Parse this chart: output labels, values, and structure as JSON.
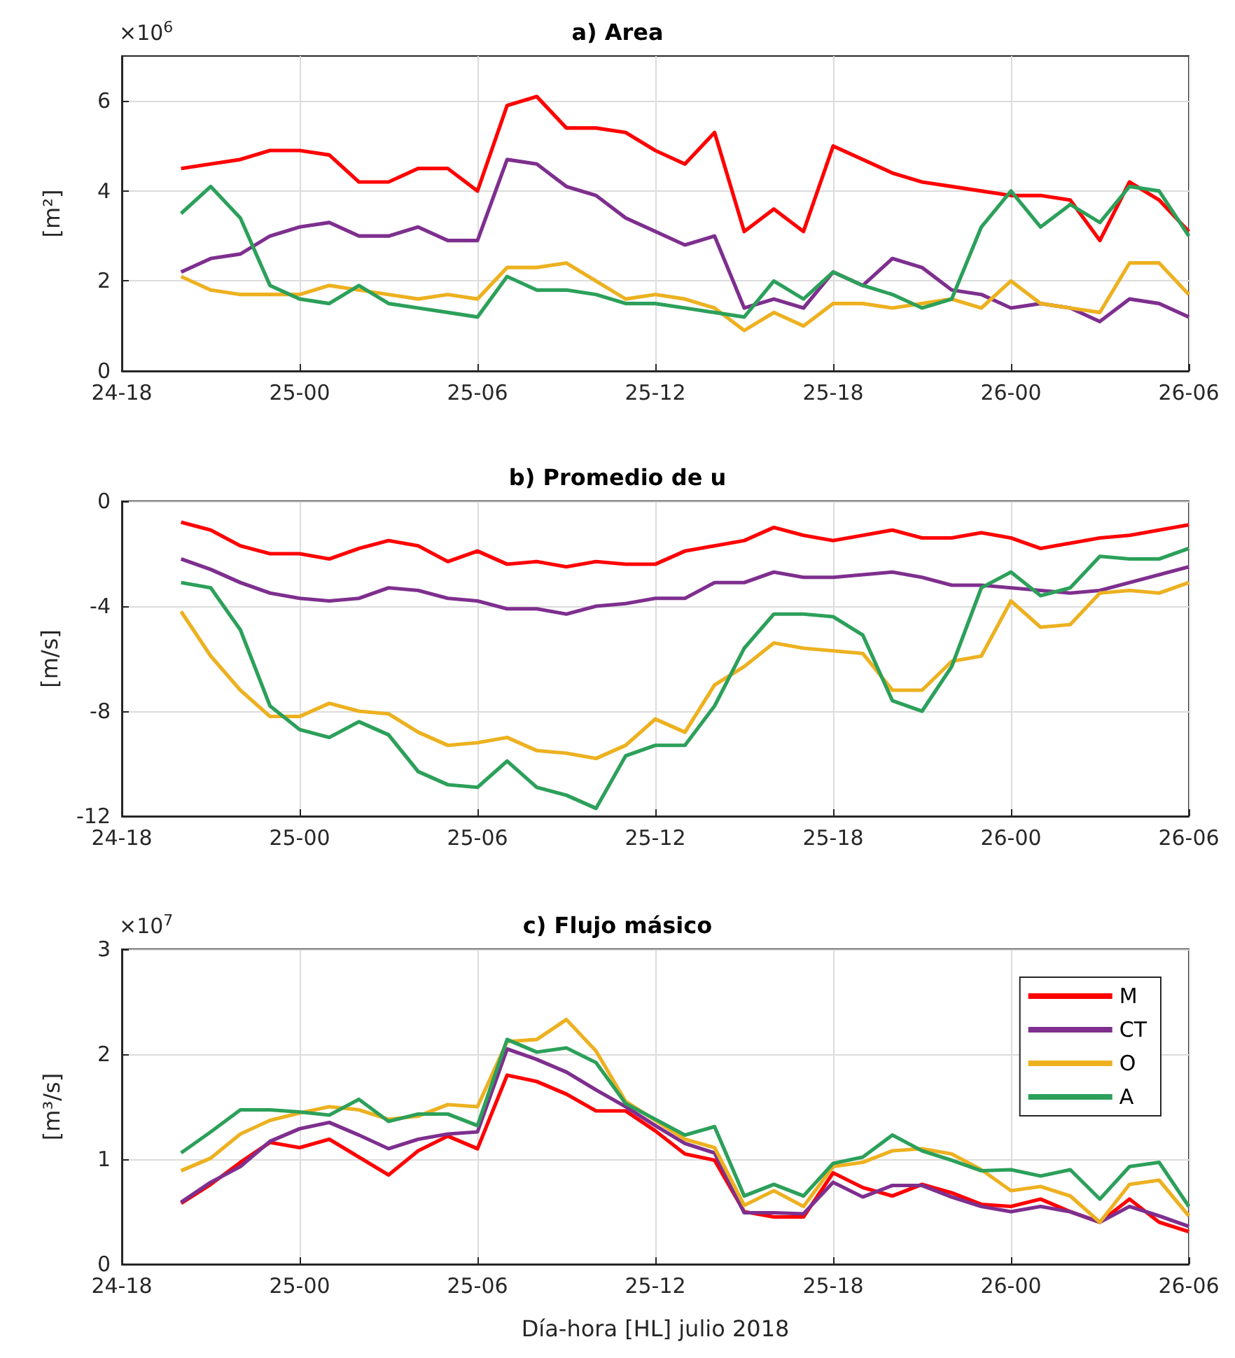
{
  "chart_data": [
    {
      "type": "line",
      "title": "a) Area",
      "ylabel": "[m²]",
      "annotations": [
        "×10$^{6}$"
      ],
      "x": [
        "2018-07-24T20:00",
        "2018-07-24T21:00",
        "2018-07-24T22:00",
        "2018-07-24T23:00",
        "2018-07-25T00:00",
        "2018-07-25T01:00",
        "2018-07-25T02:00",
        "2018-07-25T03:00",
        "2018-07-25T04:00",
        "2018-07-25T05:00",
        "2018-07-25T06:00",
        "2018-07-25T07:00",
        "2018-07-25T08:00",
        "2018-07-25T09:00",
        "2018-07-25T10:00",
        "2018-07-25T11:00",
        "2018-07-25T12:00",
        "2018-07-25T13:00",
        "2018-07-25T14:00",
        "2018-07-25T15:00",
        "2018-07-25T16:00",
        "2018-07-25T17:00",
        "2018-07-25T18:00",
        "2018-07-25T19:00",
        "2018-07-25T20:00",
        "2018-07-25T21:00",
        "2018-07-25T22:00",
        "2018-07-25T23:00",
        "2018-07-26T00:00",
        "2018-07-26T01:00",
        "2018-07-26T02:00",
        "2018-07-26T03:00",
        "2018-07-26T04:00",
        "2018-07-26T05:00",
        "2018-07-26T06:00"
      ],
      "series": [
        {
          "color": "#ff0000",
          "values": [
            4.5,
            4.6,
            4.7,
            4.9,
            4.9,
            4.8,
            4.2,
            4.2,
            4.5,
            4.5,
            4.0,
            5.9,
            6.1,
            5.4,
            5.4,
            5.3,
            4.9,
            4.6,
            5.3,
            3.1,
            3.6,
            3.1,
            5.0,
            4.7,
            4.4,
            4.2,
            4.1,
            4.0,
            3.9,
            3.9,
            3.8,
            2.9,
            4.2,
            3.8,
            3.1
          ]
        },
        {
          "color": "#7e2f8e",
          "values": [
            2.2,
            2.5,
            2.6,
            3.0,
            3.2,
            3.3,
            3.0,
            3.0,
            3.2,
            2.9,
            2.9,
            4.7,
            4.6,
            4.1,
            3.9,
            3.4,
            3.1,
            2.8,
            3.0,
            1.4,
            1.6,
            1.4,
            2.2,
            1.9,
            2.5,
            2.3,
            1.8,
            1.7,
            1.4,
            1.5,
            1.4,
            1.1,
            1.6,
            1.5,
            1.2
          ]
        },
        {
          "color": "#edb120",
          "values": [
            2.1,
            1.8,
            1.7,
            1.7,
            1.7,
            1.9,
            1.8,
            1.7,
            1.6,
            1.7,
            1.6,
            2.3,
            2.3,
            2.4,
            2.0,
            1.6,
            1.7,
            1.6,
            1.4,
            0.9,
            1.3,
            1.0,
            1.5,
            1.5,
            1.4,
            1.5,
            1.6,
            1.4,
            2.0,
            1.5,
            1.4,
            1.3,
            2.4,
            2.4,
            1.7
          ]
        },
        {
          "color": "#2ca05a",
          "values": [
            3.5,
            4.1,
            3.4,
            1.9,
            1.6,
            1.5,
            1.9,
            1.5,
            1.4,
            1.3,
            1.2,
            2.1,
            1.8,
            1.8,
            1.7,
            1.5,
            1.5,
            1.4,
            1.3,
            1.2,
            2.0,
            1.6,
            2.2,
            1.9,
            1.7,
            1.4,
            1.6,
            3.2,
            4.0,
            3.2,
            3.7,
            3.3,
            4.1,
            4.0,
            3.0
          ]
        }
      ],
      "xlim": [
        "2018-07-24T18:00",
        "2018-07-26T06:00"
      ],
      "xticks": [
        {
          "value": "2018-07-24T18:00",
          "label": "24-18"
        },
        {
          "value": "2018-07-25T00:00",
          "label": "25-00"
        },
        {
          "value": "2018-07-25T06:00",
          "label": "25-06"
        },
        {
          "value": "2018-07-25T12:00",
          "label": "25-12"
        },
        {
          "value": "2018-07-25T18:00",
          "label": "25-18"
        },
        {
          "value": "2018-07-26T00:00",
          "label": "26-00"
        },
        {
          "value": "2018-07-26T06:00",
          "label": "26-06"
        }
      ],
      "ylim": [
        0,
        7
      ],
      "yticks": [
        0,
        2,
        4,
        6
      ],
      "grid": true
    },
    {
      "type": "line",
      "title": "b) Promedio de u",
      "ylabel": "[m/s]",
      "x": [
        "2018-07-24T20:00",
        "2018-07-24T21:00",
        "2018-07-24T22:00",
        "2018-07-24T23:00",
        "2018-07-25T00:00",
        "2018-07-25T01:00",
        "2018-07-25T02:00",
        "2018-07-25T03:00",
        "2018-07-25T04:00",
        "2018-07-25T05:00",
        "2018-07-25T06:00",
        "2018-07-25T07:00",
        "2018-07-25T08:00",
        "2018-07-25T09:00",
        "2018-07-25T10:00",
        "2018-07-25T11:00",
        "2018-07-25T12:00",
        "2018-07-25T13:00",
        "2018-07-25T14:00",
        "2018-07-25T15:00",
        "2018-07-25T16:00",
        "2018-07-25T17:00",
        "2018-07-25T18:00",
        "2018-07-25T19:00",
        "2018-07-25T20:00",
        "2018-07-25T21:00",
        "2018-07-25T22:00",
        "2018-07-25T23:00",
        "2018-07-26T00:00",
        "2018-07-26T01:00",
        "2018-07-26T02:00",
        "2018-07-26T03:00",
        "2018-07-26T04:00",
        "2018-07-26T05:00",
        "2018-07-26T06:00"
      ],
      "series": [
        {
          "color": "#ff0000",
          "values": [
            -0.8,
            -1.1,
            -1.7,
            -2.0,
            -2.0,
            -2.2,
            -1.8,
            -1.5,
            -1.7,
            -2.3,
            -1.9,
            -2.4,
            -2.3,
            -2.5,
            -2.3,
            -2.4,
            -2.4,
            -1.9,
            -1.7,
            -1.5,
            -1.0,
            -1.3,
            -1.5,
            -1.3,
            -1.1,
            -1.4,
            -1.4,
            -1.2,
            -1.4,
            -1.8,
            -1.6,
            -1.4,
            -1.3,
            -1.1,
            -0.9
          ]
        },
        {
          "color": "#7e2f8e",
          "values": [
            -2.2,
            -2.6,
            -3.1,
            -3.5,
            -3.7,
            -3.8,
            -3.7,
            -3.3,
            -3.4,
            -3.7,
            -3.8,
            -4.1,
            -4.1,
            -4.3,
            -4.0,
            -3.9,
            -3.7,
            -3.7,
            -3.1,
            -3.1,
            -2.7,
            -2.9,
            -2.9,
            -2.8,
            -2.7,
            -2.9,
            -3.2,
            -3.2,
            -3.3,
            -3.4,
            -3.5,
            -3.4,
            -3.1,
            -2.8,
            -2.5
          ]
        },
        {
          "color": "#edb120",
          "values": [
            -4.2,
            -5.9,
            -7.2,
            -8.2,
            -8.2,
            -7.7,
            -8.0,
            -8.1,
            -8.8,
            -9.3,
            -9.2,
            -9.0,
            -9.5,
            -9.6,
            -9.8,
            -9.3,
            -8.3,
            -8.8,
            -7.0,
            -6.3,
            -5.4,
            -5.6,
            -5.7,
            -5.8,
            -7.2,
            -7.2,
            -6.1,
            -5.9,
            -3.8,
            -4.8,
            -4.7,
            -3.5,
            -3.4,
            -3.5,
            -3.1
          ]
        },
        {
          "color": "#2ca05a",
          "values": [
            -3.1,
            -3.3,
            -4.9,
            -7.8,
            -8.7,
            -9.0,
            -8.4,
            -8.9,
            -10.3,
            -10.8,
            -10.9,
            -9.9,
            -10.9,
            -11.2,
            -11.7,
            -9.7,
            -9.3,
            -9.3,
            -7.8,
            -5.6,
            -4.3,
            -4.3,
            -4.4,
            -5.1,
            -7.6,
            -8.0,
            -6.3,
            -3.3,
            -2.7,
            -3.6,
            -3.3,
            -2.1,
            -2.2,
            -2.2,
            -1.8
          ]
        }
      ],
      "xlim": [
        "2018-07-24T18:00",
        "2018-07-26T06:00"
      ],
      "xticks": [
        {
          "value": "2018-07-24T18:00",
          "label": "24-18"
        },
        {
          "value": "2018-07-25T00:00",
          "label": "25-00"
        },
        {
          "value": "2018-07-25T06:00",
          "label": "25-06"
        },
        {
          "value": "2018-07-25T12:00",
          "label": "25-12"
        },
        {
          "value": "2018-07-25T18:00",
          "label": "25-18"
        },
        {
          "value": "2018-07-26T00:00",
          "label": "26-00"
        },
        {
          "value": "2018-07-26T06:00",
          "label": "26-06"
        }
      ],
      "ylim": [
        -12,
        0
      ],
      "yticks": [
        -12,
        -8,
        -4,
        0
      ],
      "grid": true
    },
    {
      "type": "line",
      "title": "c) Flujo másico",
      "ylabel": "[m³/s]",
      "xlabel": "Día-hora [HL] julio 2018",
      "annotations": [
        "×10$^{7}$"
      ],
      "x": [
        "2018-07-24T20:00",
        "2018-07-24T21:00",
        "2018-07-24T22:00",
        "2018-07-24T23:00",
        "2018-07-25T00:00",
        "2018-07-25T01:00",
        "2018-07-25T02:00",
        "2018-07-25T03:00",
        "2018-07-25T04:00",
        "2018-07-25T05:00",
        "2018-07-25T06:00",
        "2018-07-25T07:00",
        "2018-07-25T08:00",
        "2018-07-25T09:00",
        "2018-07-25T10:00",
        "2018-07-25T11:00",
        "2018-07-25T12:00",
        "2018-07-25T13:00",
        "2018-07-25T14:00",
        "2018-07-25T15:00",
        "2018-07-25T16:00",
        "2018-07-25T17:00",
        "2018-07-25T18:00",
        "2018-07-25T19:00",
        "2018-07-25T20:00",
        "2018-07-25T21:00",
        "2018-07-25T22:00",
        "2018-07-25T23:00",
        "2018-07-26T00:00",
        "2018-07-26T01:00",
        "2018-07-26T02:00",
        "2018-07-26T03:00",
        "2018-07-26T04:00",
        "2018-07-26T05:00",
        "2018-07-26T06:00"
      ],
      "series": [
        {
          "name": "M",
          "color": "#ff0000",
          "values": [
            0.58,
            0.76,
            0.97,
            1.16,
            1.11,
            1.19,
            1.02,
            0.85,
            1.08,
            1.22,
            1.1,
            1.8,
            1.74,
            1.62,
            1.46,
            1.46,
            1.27,
            1.05,
            0.99,
            0.5,
            0.45,
            0.45,
            0.87,
            0.73,
            0.65,
            0.76,
            0.68,
            0.57,
            0.55,
            0.62,
            0.5,
            0.4,
            0.62,
            0.4,
            0.31
          ]
        },
        {
          "name": "CT",
          "color": "#7e2f8e",
          "values": [
            0.59,
            0.78,
            0.93,
            1.17,
            1.29,
            1.35,
            1.23,
            1.1,
            1.19,
            1.24,
            1.26,
            2.05,
            1.95,
            1.83,
            1.66,
            1.5,
            1.32,
            1.15,
            1.06,
            0.49,
            0.49,
            0.48,
            0.78,
            0.64,
            0.75,
            0.75,
            0.64,
            0.55,
            0.5,
            0.55,
            0.5,
            0.4,
            0.55,
            0.46,
            0.36
          ]
        },
        {
          "name": "O",
          "color": "#edb120",
          "values": [
            0.89,
            1.01,
            1.24,
            1.37,
            1.44,
            1.5,
            1.47,
            1.38,
            1.41,
            1.52,
            1.5,
            2.12,
            2.14,
            2.33,
            2.03,
            1.55,
            1.37,
            1.19,
            1.11,
            0.56,
            0.7,
            0.55,
            0.93,
            0.97,
            1.08,
            1.1,
            1.05,
            0.9,
            0.7,
            0.74,
            0.65,
            0.4,
            0.76,
            0.8,
            0.46
          ]
        },
        {
          "name": "A",
          "color": "#2ca05a",
          "values": [
            1.06,
            1.26,
            1.47,
            1.47,
            1.45,
            1.42,
            1.57,
            1.36,
            1.43,
            1.43,
            1.32,
            2.14,
            2.02,
            2.06,
            1.92,
            1.53,
            1.38,
            1.23,
            1.31,
            0.65,
            0.76,
            0.65,
            0.96,
            1.02,
            1.23,
            1.08,
            0.99,
            0.89,
            0.9,
            0.84,
            0.9,
            0.62,
            0.93,
            0.97,
            0.55
          ]
        }
      ],
      "xlim": [
        "2018-07-24T18:00",
        "2018-07-26T06:00"
      ],
      "xticks": [
        {
          "value": "2018-07-24T18:00",
          "label": "24-18"
        },
        {
          "value": "2018-07-25T00:00",
          "label": "25-00"
        },
        {
          "value": "2018-07-25T06:00",
          "label": "25-06"
        },
        {
          "value": "2018-07-25T12:00",
          "label": "25-12"
        },
        {
          "value": "2018-07-25T18:00",
          "label": "25-18"
        },
        {
          "value": "2018-07-26T00:00",
          "label": "26-00"
        },
        {
          "value": "2018-07-26T06:00",
          "label": "26-06"
        }
      ],
      "ylim": [
        0,
        3
      ],
      "yticks": [
        0,
        1,
        2,
        3
      ],
      "grid": true,
      "legend": "top right"
    }
  ]
}
